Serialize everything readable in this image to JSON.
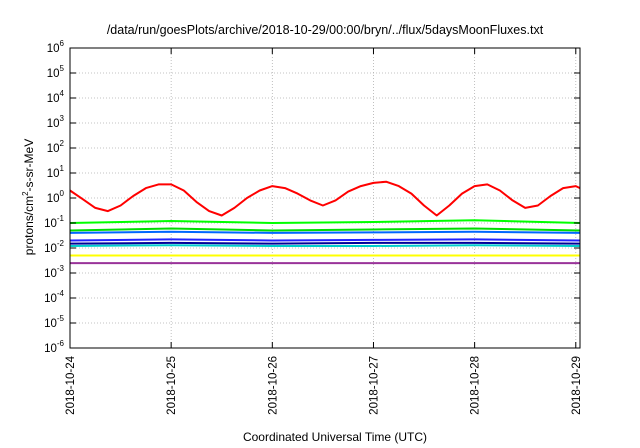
{
  "chart_data": {
    "type": "line",
    "title": "/data/run/goesPlots/archive/2018-10-29/00:00/bryn/../flux/5daysMoonFluxes.txt",
    "xlabel": "Coordinated Universal Time (UTC)",
    "ylabel": {
      "base": "protons/cm",
      "exp": "2",
      "rest": "-s-sr-MeV"
    },
    "y_scale": "log",
    "ylim": [
      1e-06,
      1000000.0
    ],
    "y_ticks": [
      {
        "v": 1e-06,
        "exp": "-6"
      },
      {
        "v": 1e-05,
        "exp": "-5"
      },
      {
        "v": 0.0001,
        "exp": "-4"
      },
      {
        "v": 0.001,
        "exp": "-3"
      },
      {
        "v": 0.01,
        "exp": "-2"
      },
      {
        "v": 0.1,
        "exp": "-1"
      },
      {
        "v": 1,
        "exp": "0"
      },
      {
        "v": 10,
        "exp": "1"
      },
      {
        "v": 100,
        "exp": "2"
      },
      {
        "v": 1000,
        "exp": "3"
      },
      {
        "v": 10000,
        "exp": "4"
      },
      {
        "v": 100000,
        "exp": "5"
      },
      {
        "v": 1000000,
        "exp": "6"
      }
    ],
    "y_tick_base": "10",
    "xlim": [
      "2018-10-24T00:00",
      "2018-10-29T01:00"
    ],
    "x_ticks": [
      "2018-10-24",
      "2018-10-25",
      "2018-10-26",
      "2018-10-27",
      "2018-10-28",
      "2018-10-29"
    ],
    "grid": true,
    "legend": "none",
    "series": [
      {
        "color": "#ff0000",
        "x": [
          "2018-10-24T00:00",
          "2018-10-24T03:00",
          "2018-10-24T06:00",
          "2018-10-24T09:00",
          "2018-10-24T12:00",
          "2018-10-24T15:00",
          "2018-10-24T18:00",
          "2018-10-24T21:00",
          "2018-10-25T00:00",
          "2018-10-25T03:00",
          "2018-10-25T06:00",
          "2018-10-25T09:00",
          "2018-10-25T12:00",
          "2018-10-25T15:00",
          "2018-10-25T18:00",
          "2018-10-25T21:00",
          "2018-10-26T00:00",
          "2018-10-26T03:00",
          "2018-10-26T06:00",
          "2018-10-26T09:00",
          "2018-10-26T12:00",
          "2018-10-26T15:00",
          "2018-10-26T18:00",
          "2018-10-26T21:00",
          "2018-10-27T00:00",
          "2018-10-27T03:00",
          "2018-10-27T06:00",
          "2018-10-27T09:00",
          "2018-10-27T12:00",
          "2018-10-27T15:00",
          "2018-10-27T18:00",
          "2018-10-27T21:00",
          "2018-10-28T00:00",
          "2018-10-28T03:00",
          "2018-10-28T06:00",
          "2018-10-28T09:00",
          "2018-10-28T12:00",
          "2018-10-28T15:00",
          "2018-10-28T18:00",
          "2018-10-28T21:00",
          "2018-10-29T00:00",
          "2018-10-29T01:00"
        ],
        "y": [
          2,
          0.9,
          0.4,
          0.3,
          0.5,
          1.2,
          2.5,
          3.5,
          3.5,
          2.0,
          0.7,
          0.3,
          0.2,
          0.4,
          1.0,
          2.0,
          3.0,
          2.5,
          1.5,
          0.8,
          0.5,
          0.8,
          1.8,
          3.0,
          4.0,
          4.5,
          3.0,
          1.5,
          0.5,
          0.2,
          0.5,
          1.5,
          3.0,
          3.5,
          2.0,
          0.8,
          0.4,
          0.5,
          1.2,
          2.5,
          3.0,
          2.5
        ]
      },
      {
        "color": "#00ff00",
        "x": [
          "2018-10-24T00:00",
          "2018-10-25T00:00",
          "2018-10-26T00:00",
          "2018-10-27T00:00",
          "2018-10-28T00:00",
          "2018-10-29T01:00"
        ],
        "y": [
          0.1,
          0.12,
          0.1,
          0.11,
          0.13,
          0.1
        ]
      },
      {
        "color": "#00dd00",
        "x": [
          "2018-10-24T00:00",
          "2018-10-25T00:00",
          "2018-10-26T00:00",
          "2018-10-27T00:00",
          "2018-10-28T00:00",
          "2018-10-29T01:00"
        ],
        "y": [
          0.05,
          0.06,
          0.05,
          0.055,
          0.06,
          0.05
        ]
      },
      {
        "color": "#0066ff",
        "x": [
          "2018-10-24T00:00",
          "2018-10-25T00:00",
          "2018-10-26T00:00",
          "2018-10-27T00:00",
          "2018-10-28T00:00",
          "2018-10-29T01:00"
        ],
        "y": [
          0.04,
          0.045,
          0.04,
          0.042,
          0.045,
          0.04
        ]
      },
      {
        "color": "#00cccc",
        "x": [
          "2018-10-24T00:00",
          "2018-10-25T00:00",
          "2018-10-26T00:00",
          "2018-10-27T00:00",
          "2018-10-28T00:00",
          "2018-10-29T01:00"
        ],
        "y": [
          0.012,
          0.013,
          0.012,
          0.012,
          0.013,
          0.012
        ]
      },
      {
        "color": "#2222ff",
        "x": [
          "2018-10-24T00:00",
          "2018-10-25T00:00",
          "2018-10-26T00:00",
          "2018-10-27T00:00",
          "2018-10-28T00:00",
          "2018-10-29T01:00"
        ],
        "y": [
          0.02,
          0.022,
          0.02,
          0.021,
          0.022,
          0.02
        ]
      },
      {
        "color": "#000099",
        "x": [
          "2018-10-24T00:00",
          "2018-10-25T00:00",
          "2018-10-26T00:00",
          "2018-10-27T00:00",
          "2018-10-28T00:00",
          "2018-10-29T01:00"
        ],
        "y": [
          0.015,
          0.016,
          0.015,
          0.016,
          0.016,
          0.015
        ]
      },
      {
        "color": "#ffff00",
        "x": [
          "2018-10-24T00:00",
          "2018-10-25T00:00",
          "2018-10-26T00:00",
          "2018-10-27T00:00",
          "2018-10-28T00:00",
          "2018-10-29T01:00"
        ],
        "y": [
          0.005,
          0.005,
          0.005,
          0.005,
          0.005,
          0.005
        ]
      },
      {
        "color": "#993399",
        "x": [
          "2018-10-24T00:00",
          "2018-10-25T00:00",
          "2018-10-26T00:00",
          "2018-10-27T00:00",
          "2018-10-28T00:00",
          "2018-10-29T01:00"
        ],
        "y": [
          0.0025,
          0.0025,
          0.0025,
          0.0025,
          0.0025,
          0.0025
        ]
      }
    ]
  }
}
